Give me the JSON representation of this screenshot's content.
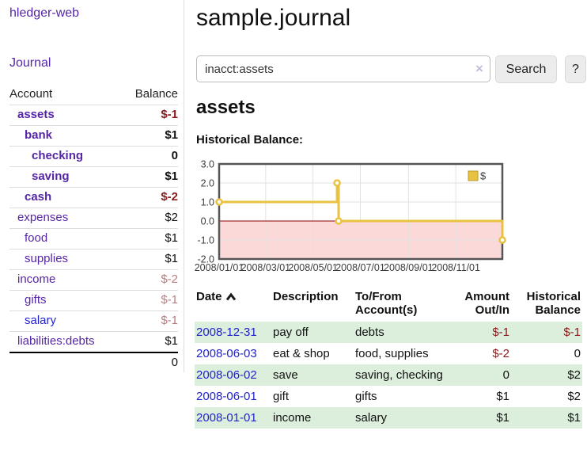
{
  "app": {
    "title": "hledger-web"
  },
  "nav": {
    "journal": "Journal"
  },
  "sidebar": {
    "headers": {
      "account": "Account",
      "balance": "Balance"
    },
    "accounts": [
      {
        "name": "assets",
        "level": 1,
        "bold": true,
        "balance": "$-1",
        "balance_class": "neg-strong"
      },
      {
        "name": "bank",
        "level": 2,
        "bold": true,
        "balance": "$1",
        "balance_class": "pos"
      },
      {
        "name": "checking",
        "level": 3,
        "bold": true,
        "balance": "0",
        "balance_class": "pos"
      },
      {
        "name": "saving",
        "level": 3,
        "bold": true,
        "balance": "$1",
        "balance_class": "pos"
      },
      {
        "name": "cash",
        "level": 2,
        "bold": true,
        "balance": "$-2",
        "balance_class": "neg-strong"
      },
      {
        "name": "expenses",
        "level": 1,
        "bold": false,
        "balance": "$2",
        "balance_class": "pos"
      },
      {
        "name": "food",
        "level": 2,
        "bold": false,
        "balance": "$1",
        "balance_class": "pos"
      },
      {
        "name": "supplies",
        "level": 2,
        "bold": false,
        "balance": "$1",
        "balance_class": "pos"
      },
      {
        "name": "income",
        "level": 1,
        "bold": false,
        "balance": "$-2",
        "balance_class": "neg-soft"
      },
      {
        "name": "gifts",
        "level": 2,
        "bold": false,
        "balance": "$-1",
        "balance_class": "neg-soft"
      },
      {
        "name": "salary",
        "level": 2,
        "bold": false,
        "balance": "$-1",
        "balance_class": "neg-soft",
        "link_style": "unvisited"
      },
      {
        "name": "liabilities:debts",
        "level": 1,
        "bold": false,
        "balance": "$1",
        "balance_class": "pos"
      }
    ],
    "total": "0"
  },
  "main": {
    "title": "sample.journal",
    "search": {
      "value": "inacct:assets",
      "clear_icon": "×",
      "button": "Search",
      "help": "?"
    },
    "account_heading": "assets"
  },
  "chart_data": {
    "type": "line",
    "step": true,
    "title": "Historical Balance:",
    "legend": {
      "label": "$",
      "position": "top-right"
    },
    "series": [
      {
        "name": "$",
        "color": "#e8c240",
        "points": [
          {
            "date": "2008-01-01",
            "day": 0,
            "value": 1
          },
          {
            "date": "2008-06-01",
            "day": 152,
            "value": 2
          },
          {
            "date": "2008-06-03",
            "day": 154,
            "value": 0
          },
          {
            "date": "2008-12-31",
            "day": 365,
            "value": -1
          }
        ]
      }
    ],
    "y_ticks": [
      {
        "label": "3.0",
        "value": 3
      },
      {
        "label": "2.0",
        "value": 2
      },
      {
        "label": "1.0",
        "value": 1
      },
      {
        "label": "0.0",
        "value": 0
      },
      {
        "label": "-1.0",
        "value": -1
      },
      {
        "label": "-2.0",
        "value": -2
      }
    ],
    "x_ticks": [
      {
        "label": "2008/01/01",
        "day": 0
      },
      {
        "label": "2008/03/01",
        "day": 60
      },
      {
        "label": "2008/05/01",
        "day": 121
      },
      {
        "label": "2008/07/01",
        "day": 182
      },
      {
        "label": "2008/09/01",
        "day": 244
      },
      {
        "label": "2008/11/01",
        "day": 305
      }
    ],
    "ylim": [
      -2,
      3
    ],
    "x_range_days": 365,
    "grid": true,
    "colors": {
      "negative_region": "#fbd9d9",
      "zero_line": "#880000",
      "border": "#555555",
      "grid": "#e2e2e2",
      "tick_text": "#3d3d3d",
      "marker_fill": "#ffffff"
    }
  },
  "transactions": {
    "headers": {
      "date": "Date",
      "description": "Description",
      "tofrom": "To/From Account(s)",
      "amount": "Amount Out/In",
      "balance": "Historical Balance"
    },
    "rows": [
      {
        "date": "2008-12-31",
        "description": "pay off",
        "accounts": "debts",
        "amount": "$-1",
        "amount_neg": true,
        "balance": "$-1",
        "balance_neg": true
      },
      {
        "date": "2008-06-03",
        "description": "eat & shop",
        "accounts": "food, supplies",
        "amount": "$-2",
        "amount_neg": true,
        "balance": "0",
        "balance_neg": false
      },
      {
        "date": "2008-06-02",
        "description": "save",
        "accounts": "saving, checking",
        "amount": "0",
        "amount_neg": false,
        "balance": "$2",
        "balance_neg": false
      },
      {
        "date": "2008-06-01",
        "description": "gift",
        "accounts": "gifts",
        "amount": "$1",
        "amount_neg": false,
        "balance": "$2",
        "balance_neg": false
      },
      {
        "date": "2008-01-01",
        "description": "income",
        "accounts": "salary",
        "amount": "$1",
        "amount_neg": false,
        "balance": "$1",
        "balance_neg": false
      }
    ]
  }
}
